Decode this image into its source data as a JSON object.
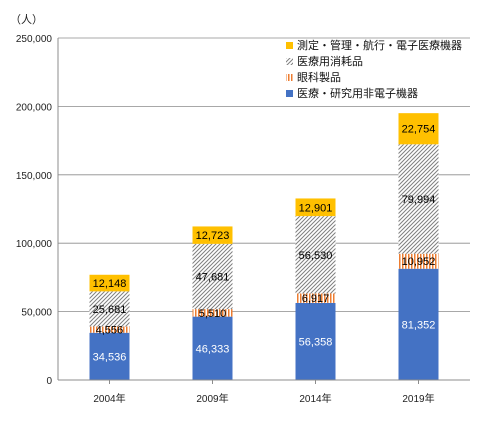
{
  "chart_data": {
    "type": "bar",
    "stacked": true,
    "unit_label": "（人）",
    "categories": [
      "2004年",
      "2009年",
      "2014年",
      "2019年"
    ],
    "series": [
      {
        "name": "医療・研究用非電子機器",
        "values": [
          34536,
          46333,
          56358,
          81352
        ],
        "color": "#4472C4",
        "pattern": "solid",
        "labels": [
          "34,536",
          "46,333",
          "56,358",
          "81,352"
        ]
      },
      {
        "name": "眼科製品",
        "values": [
          4556,
          5510,
          6917,
          10952
        ],
        "color": "#ED7D31",
        "pattern": "vertical",
        "labels": [
          "4,556",
          "5,510",
          "6,917",
          "10,952"
        ]
      },
      {
        "name": "医療用消耗品",
        "values": [
          25681,
          47681,
          56530,
          79994
        ],
        "color": "#808080",
        "pattern": "diagonal",
        "labels": [
          "25,681",
          "47,681",
          "56,530",
          "79,994"
        ]
      },
      {
        "name": "測定・管理・航行・電子医療機器",
        "values": [
          12148,
          12723,
          12901,
          22754
        ],
        "color": "#FFC000",
        "pattern": "solid",
        "labels": [
          "12,148",
          "12,723",
          "12,901",
          "22,754"
        ]
      }
    ],
    "ylim": [
      0,
      250000
    ],
    "yticks": [
      0,
      50000,
      100000,
      150000,
      200000,
      250000
    ],
    "ytick_labels": [
      "0",
      "50,000",
      "100,000",
      "150,000",
      "200,000",
      "250,000"
    ],
    "grid": true,
    "legend_position": "top-right"
  }
}
